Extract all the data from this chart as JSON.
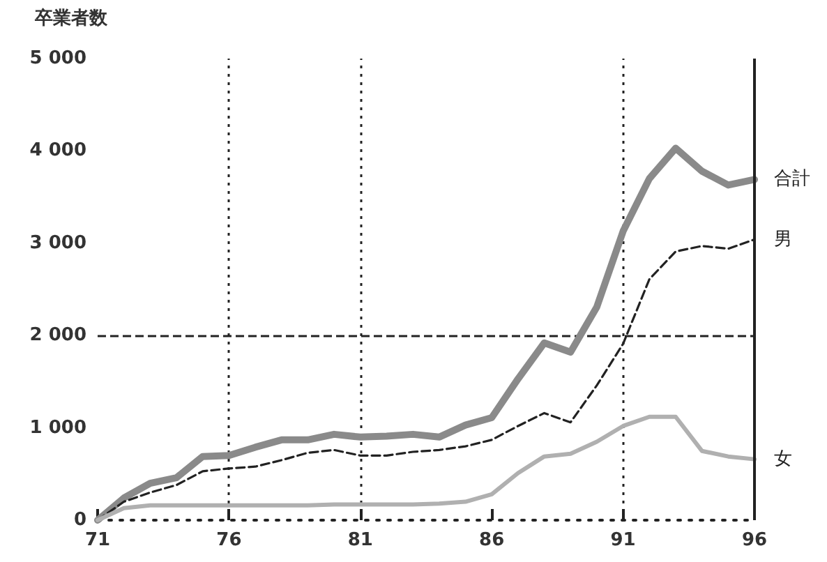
{
  "chart_data": {
    "type": "line",
    "title": "卒業者数",
    "x": [
      71,
      72,
      73,
      74,
      75,
      76,
      77,
      78,
      79,
      80,
      81,
      82,
      83,
      84,
      85,
      86,
      87,
      88,
      89,
      90,
      91,
      92,
      93,
      94,
      95,
      96
    ],
    "series": [
      {
        "name": "合計",
        "color": "#8a8a8a",
        "line_style": "solid",
        "values": [
          0,
          240,
          400,
          460,
          690,
          700,
          790,
          870,
          870,
          930,
          900,
          910,
          930,
          900,
          1030,
          1110,
          1530,
          1920,
          1820,
          2310,
          3130,
          3700,
          4030,
          3780,
          3630,
          3690
        ]
      },
      {
        "name": "男",
        "color": "#222222",
        "line_style": "dashed",
        "values": [
          0,
          200,
          300,
          380,
          530,
          560,
          580,
          650,
          730,
          760,
          700,
          700,
          740,
          760,
          800,
          870,
          1020,
          1160,
          1060,
          1460,
          1910,
          2610,
          2910,
          2970,
          2940,
          3040
        ]
      },
      {
        "name": "女",
        "color": "#b0b0b0",
        "line_style": "solid",
        "values": [
          0,
          130,
          160,
          160,
          160,
          160,
          160,
          160,
          160,
          170,
          170,
          170,
          170,
          180,
          200,
          280,
          510,
          690,
          720,
          850,
          1020,
          1120,
          1120,
          750,
          690,
          660
        ]
      }
    ],
    "xlim": [
      71,
      96
    ],
    "xticks": [
      71,
      76,
      81,
      86,
      91,
      96
    ],
    "ylim": [
      0,
      5000
    ],
    "yticks": [
      0,
      {
        "value": 1000,
        "label": "1 000"
      },
      {
        "value": 2000,
        "label": "2 000"
      },
      {
        "value": 3000,
        "label": "3 000"
      },
      {
        "value": 4000,
        "label": "4 000"
      },
      {
        "value": 5000,
        "label": "5 000"
      }
    ],
    "ref_lines": [
      {
        "axis": "x",
        "value": 76,
        "line_style": "dotted"
      },
      {
        "axis": "x",
        "value": 81,
        "line_style": "dotted"
      },
      {
        "axis": "x",
        "value": 91,
        "line_style": "dotted"
      },
      {
        "axis": "y",
        "value": 2000,
        "line_style": "dashed"
      }
    ],
    "grid": false,
    "legend": false,
    "marker": "none"
  }
}
